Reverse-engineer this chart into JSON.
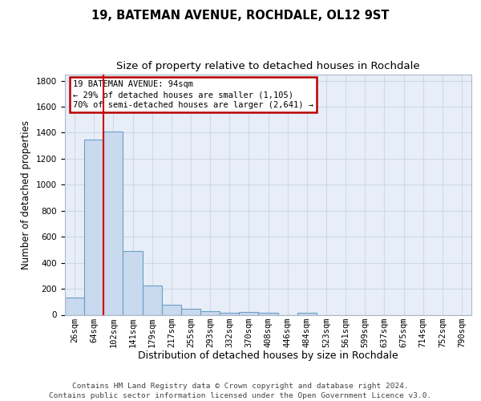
{
  "title": "19, BATEMAN AVENUE, ROCHDALE, OL12 9ST",
  "subtitle": "Size of property relative to detached houses in Rochdale",
  "xlabel": "Distribution of detached houses by size in Rochdale",
  "ylabel": "Number of detached properties",
  "bin_labels": [
    "26sqm",
    "64sqm",
    "102sqm",
    "141sqm",
    "179sqm",
    "217sqm",
    "255sqm",
    "293sqm",
    "332sqm",
    "370sqm",
    "408sqm",
    "446sqm",
    "484sqm",
    "523sqm",
    "561sqm",
    "599sqm",
    "637sqm",
    "675sqm",
    "714sqm",
    "752sqm",
    "790sqm"
  ],
  "bar_values": [
    135,
    1350,
    1410,
    490,
    225,
    75,
    45,
    30,
    15,
    20,
    15,
    0,
    18,
    0,
    0,
    0,
    0,
    0,
    0,
    0,
    0
  ],
  "bar_color": "#c9d9ee",
  "bar_edge_color": "#6a9fc4",
  "red_line_x": 1.5,
  "annotation_line1": "19 BATEMAN AVENUE: 94sqm",
  "annotation_line2": "← 29% of detached houses are smaller (1,105)",
  "annotation_line3": "70% of semi-detached houses are larger (2,641) →",
  "annotation_box_facecolor": "#ffffff",
  "annotation_box_edgecolor": "#bb0000",
  "ylim_max": 1850,
  "yticks": [
    0,
    200,
    400,
    600,
    800,
    1000,
    1200,
    1400,
    1600,
    1800
  ],
  "plot_bg": "#e8eef8",
  "grid_color": "#d0d8e8",
  "footer_line1": "Contains HM Land Registry data © Crown copyright and database right 2024.",
  "footer_line2": "Contains public sector information licensed under the Open Government Licence v3.0.",
  "title_fontsize": 10.5,
  "subtitle_fontsize": 9.5,
  "xlabel_fontsize": 9,
  "ylabel_fontsize": 8.5,
  "tick_fontsize": 7.5,
  "ann_fontsize": 7.5,
  "footer_fontsize": 6.8
}
